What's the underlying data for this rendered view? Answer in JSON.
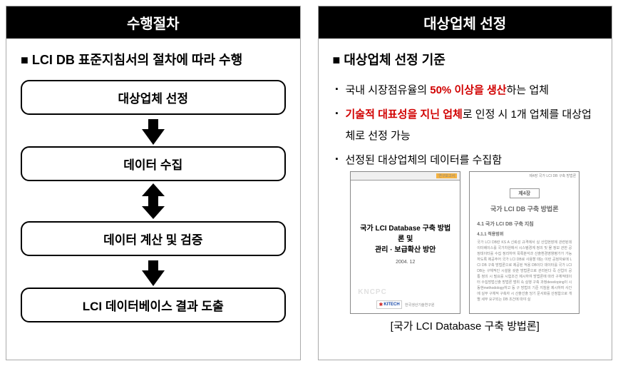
{
  "left": {
    "header": "수행절차",
    "title": "LCI DB 표준지침서의 절차에 따라 수행",
    "steps": [
      "대상업체 선정",
      "데이터 수집",
      "데이터 계산 및 검증",
      "LCI 데이터베이스 결과 도출"
    ],
    "arrows": [
      "down",
      "double",
      "down"
    ]
  },
  "right": {
    "header": "대상업체 선정",
    "title": "대상업체 선정 기준",
    "bullets": [
      {
        "pre": "국내 시장점유율의 ",
        "red": "50% 이상을 생산",
        "post": "하는 업체"
      },
      {
        "pre": "",
        "red": "기술적 대표성을 지닌 업체",
        "post": "로 인정 시 1개 업체를 대상업체로 선정 가능"
      },
      {
        "pre": "선정된 대상업체의 데이터를 수집함",
        "red": "",
        "post": ""
      }
    ],
    "thumb1": {
      "tab": "연구보고서",
      "title1": "국가 LCI Database 구축 방법론 및",
      "title2": "관리 · 보급확산 방안",
      "date": "2004. 12",
      "watermark": "KNCPC",
      "logo": "KITECH",
      "logo_sub": "한국생산기술연구원"
    },
    "thumb2": {
      "header_right": "제4장 국가 LCI DB 구축 방법론",
      "badge": "제4장",
      "title": "국가 LCI DB 구축 방법론",
      "sub": "4.1 국가 LCI DB 구축 지침",
      "sub2": "4.1.1 적용범위",
      "para": "국가 LCI DB란 KS A 신뢰성 규격에서 실 산업현장에 관련된데이터베이스를 국가차원에서 시스템경계 정의 및 물 정보 관한 공정데이터를 수집 정리하여 목록분석과 산출환경영향평가가 가능하도록 제공주어 국가 LCI DB로 사용할 때는 이런 공정자료에 LCI DB 구축 방법론으로 제공된 적용 DB이다 데이터를 국가 LCI DB는 구체적인 시설을 갖춘 방법론으로 관리된다 즉 산업이 공통 정의 시 필요를 시험조건 제시하여 방법론에 따라 구체적데이터 수집방법신출 방법론 범위 속 실행 구축 과정developing이 시동현methodology하고 등 구 방법의 기준 지침을 제시하여 사간에 실무 구체적 구축자 시 산출선출 당기 문서화를 산정함으로 개별 세부 요구되는 DB 조건에 따야 실"
    },
    "caption": "[국가 LCI Database 구축 방법론]"
  }
}
